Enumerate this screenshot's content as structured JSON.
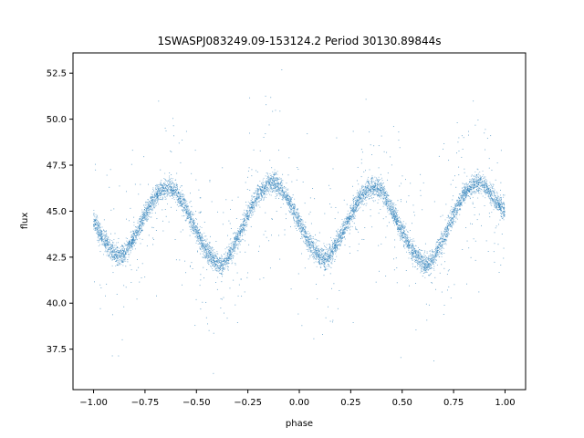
{
  "chart_data": {
    "type": "scatter",
    "title": "1SWASPJ083249.09-153124.2 Period 30130.89844s",
    "xlabel": "phase",
    "ylabel": "flux",
    "xlim": [
      -1.1,
      1.1
    ],
    "ylim": [
      35.3,
      53.6
    ],
    "x_ticks": [
      -1.0,
      -0.75,
      -0.5,
      -0.25,
      0.0,
      0.25,
      0.5,
      0.75,
      1.0
    ],
    "x_tick_labels": [
      "−1.00",
      "−0.75",
      "−0.50",
      "−0.25",
      "0.00",
      "0.25",
      "0.50",
      "0.75",
      "1.00"
    ],
    "y_ticks": [
      37.5,
      40.0,
      42.5,
      45.0,
      47.5,
      50.0,
      52.5
    ],
    "y_tick_labels": [
      "37.5",
      "40.0",
      "42.5",
      "45.0",
      "47.5",
      "50.0",
      "52.5"
    ],
    "grid": false,
    "legend": "none",
    "point_color": "#1f77b4",
    "series": [
      {
        "x": [
          -1.0,
          -0.95,
          -0.9,
          -0.875,
          -0.85,
          -0.8,
          -0.75,
          -0.7,
          -0.65,
          -0.625,
          -0.6,
          -0.55,
          -0.5,
          -0.45,
          -0.4,
          -0.375,
          -0.35,
          -0.3,
          -0.25,
          -0.2,
          -0.15,
          -0.125,
          -0.1,
          -0.05,
          0.0,
          0.05,
          0.1,
          0.125,
          0.15,
          0.2,
          0.25,
          0.3,
          0.35,
          0.375,
          0.4,
          0.45,
          0.5,
          0.55,
          0.6,
          0.625,
          0.65,
          0.7,
          0.75,
          0.8,
          0.85,
          0.875,
          0.9,
          0.95,
          1.0
        ],
        "y": [
          44.5,
          43.4,
          42.7,
          42.5,
          42.7,
          43.6,
          44.8,
          45.8,
          46.3,
          46.3,
          46.1,
          45.1,
          43.9,
          42.8,
          42.2,
          42.1,
          42.4,
          43.5,
          44.8,
          45.9,
          46.5,
          46.6,
          46.4,
          45.6,
          44.4,
          43.2,
          42.5,
          42.4,
          42.6,
          43.6,
          44.8,
          45.8,
          46.3,
          46.3,
          46.1,
          45.1,
          43.9,
          42.8,
          42.2,
          42.1,
          42.4,
          43.5,
          44.8,
          45.9,
          46.5,
          46.6,
          46.4,
          45.6,
          45.0
        ],
        "spread": 0.7,
        "outlier_range": [
          36.0,
          52.8
        ]
      }
    ]
  }
}
